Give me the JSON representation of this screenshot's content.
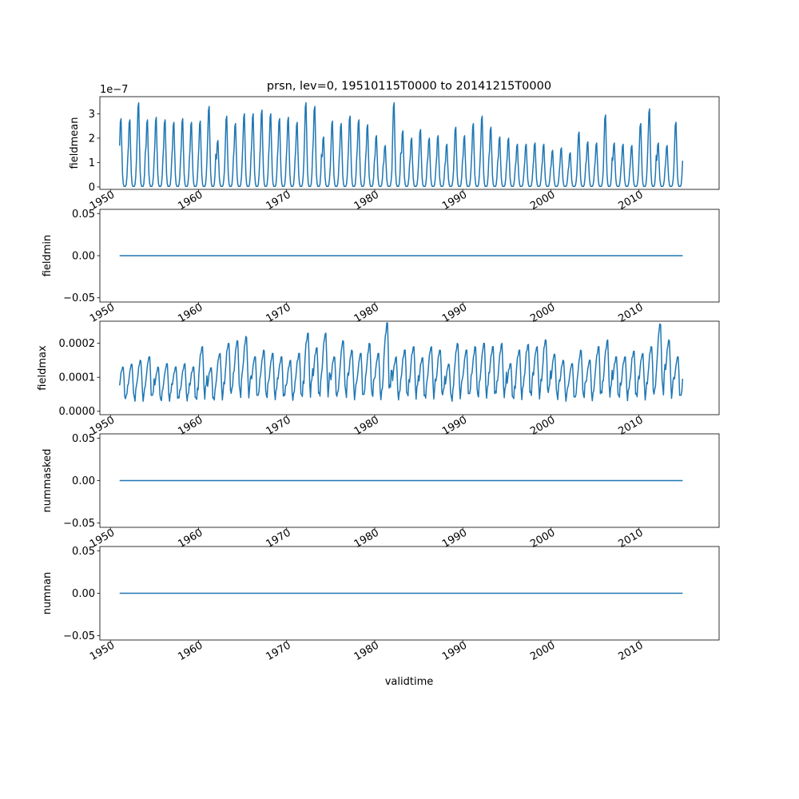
{
  "figure": {
    "title": "prsn, lev=0, 19510115T0000 to 20141215T0000",
    "xlabel": "validtime",
    "series_color": "#1f77b4"
  },
  "chart_data": [
    {
      "type": "line",
      "name": "fieldmean",
      "ylabel": "fieldmean",
      "y_offset_label": "1e−7",
      "ylim": [
        -1e-08,
        3.7e-07
      ],
      "yticks": [
        0,
        1e-07,
        2e-07,
        3e-07
      ],
      "ytick_labels": [
        "0",
        "1",
        "2",
        "3"
      ],
      "xlim": [
        1948.8,
        2019.1
      ],
      "xticks": [
        1950,
        1960,
        1970,
        1980,
        1990,
        2000,
        2010
      ],
      "xtick_labels": [
        "1950",
        "1960",
        "1970",
        "1980",
        "1990",
        "2000",
        "2010"
      ],
      "x_start": 1951.04,
      "x_end": 2014.96,
      "shape": "seasonal",
      "baseline": 2e-09,
      "annual_peaks": [
        2.8,
        2.75,
        3.45,
        2.75,
        2.85,
        2.75,
        2.65,
        2.8,
        2.65,
        2.7,
        3.3,
        1.9,
        2.9,
        2.6,
        3.0,
        3.0,
        3.15,
        3.0,
        2.8,
        2.85,
        2.65,
        3.45,
        3.3,
        2.05,
        2.7,
        2.6,
        2.9,
        2.75,
        2.55,
        2.1,
        1.7,
        3.45,
        2.3,
        2.0,
        2.35,
        2.0,
        2.1,
        1.75,
        2.45,
        2.1,
        2.6,
        2.9,
        2.45,
        2.05,
        2.0,
        1.75,
        1.75,
        1.8,
        1.75,
        1.5,
        1.6,
        1.4,
        2.25,
        1.85,
        1.8,
        2.95,
        1.8,
        1.75,
        1.7,
        2.6,
        3.2,
        1.8,
        1.7,
        2.65
      ],
      "peak_scale": 1e-07
    },
    {
      "type": "line",
      "name": "fieldmin",
      "ylabel": "fieldmin",
      "ylim": [
        -0.055,
        0.055
      ],
      "yticks": [
        -0.05,
        0.0,
        0.05
      ],
      "ytick_labels": [
        "−0.05",
        "0.00",
        "0.05"
      ],
      "xlim": [
        1948.8,
        2019.1
      ],
      "xticks": [
        1950,
        1960,
        1970,
        1980,
        1990,
        2000,
        2010
      ],
      "xtick_labels": [
        "1950",
        "1960",
        "1970",
        "1980",
        "1990",
        "2000",
        "2010"
      ],
      "x_start": 1951.04,
      "x_end": 2014.96,
      "shape": "constant",
      "value": 0.0
    },
    {
      "type": "line",
      "name": "fieldmax",
      "ylabel": "fieldmax",
      "ylim": [
        -1e-05,
        0.000265
      ],
      "yticks": [
        0.0,
        0.0001,
        0.0002
      ],
      "ytick_labels": [
        "0.0000",
        "0.0001",
        "0.0002"
      ],
      "xlim": [
        1948.8,
        2019.1
      ],
      "xticks": [
        1950,
        1960,
        1970,
        1980,
        1990,
        2000,
        2010
      ],
      "xtick_labels": [
        "1950",
        "1960",
        "1970",
        "1980",
        "1990",
        "2000",
        "2010"
      ],
      "x_start": 1951.04,
      "x_end": 2014.96,
      "shape": "seasonal-noisy",
      "baseline": 1e-05,
      "annual_peaks": [
        1.3,
        1.4,
        1.5,
        1.6,
        1.3,
        1.4,
        1.3,
        1.4,
        1.3,
        1.9,
        1.3,
        1.7,
        2.0,
        2.1,
        2.2,
        1.6,
        1.8,
        1.7,
        1.6,
        1.5,
        1.7,
        2.3,
        1.9,
        2.3,
        1.6,
        2.1,
        1.8,
        1.7,
        2.0,
        1.7,
        2.6,
        1.6,
        1.8,
        1.9,
        1.6,
        1.9,
        1.8,
        1.4,
        2.0,
        1.8,
        1.9,
        2.0,
        1.9,
        2.0,
        1.4,
        1.8,
        2.0,
        1.9,
        2.1,
        1.7,
        1.5,
        1.4,
        1.8,
        1.5,
        1.9,
        2.1,
        1.6,
        1.6,
        1.8,
        1.7,
        1.9,
        2.6,
        2.1,
        1.6
      ],
      "peak_scale": 0.0001
    },
    {
      "type": "line",
      "name": "nummasked",
      "ylabel": "nummasked",
      "ylim": [
        -0.055,
        0.055
      ],
      "yticks": [
        -0.05,
        0.0,
        0.05
      ],
      "ytick_labels": [
        "−0.05",
        "0.00",
        "0.05"
      ],
      "xlim": [
        1948.8,
        2019.1
      ],
      "xticks": [
        1950,
        1960,
        1970,
        1980,
        1990,
        2000,
        2010
      ],
      "xtick_labels": [
        "1950",
        "1960",
        "1970",
        "1980",
        "1990",
        "2000",
        "2010"
      ],
      "x_start": 1951.04,
      "x_end": 2014.96,
      "shape": "constant",
      "value": 0.0
    },
    {
      "type": "line",
      "name": "numnan",
      "ylabel": "numnan",
      "ylim": [
        -0.055,
        0.055
      ],
      "yticks": [
        -0.05,
        0.0,
        0.05
      ],
      "ytick_labels": [
        "−0.05",
        "0.00",
        "0.05"
      ],
      "xlim": [
        1948.8,
        2019.1
      ],
      "xticks": [
        1950,
        1960,
        1970,
        1980,
        1990,
        2000,
        2010
      ],
      "xtick_labels": [
        "1950",
        "1960",
        "1970",
        "1980",
        "1990",
        "2000",
        "2010"
      ],
      "x_start": 1951.04,
      "x_end": 2014.96,
      "shape": "constant",
      "value": 0.0
    }
  ]
}
